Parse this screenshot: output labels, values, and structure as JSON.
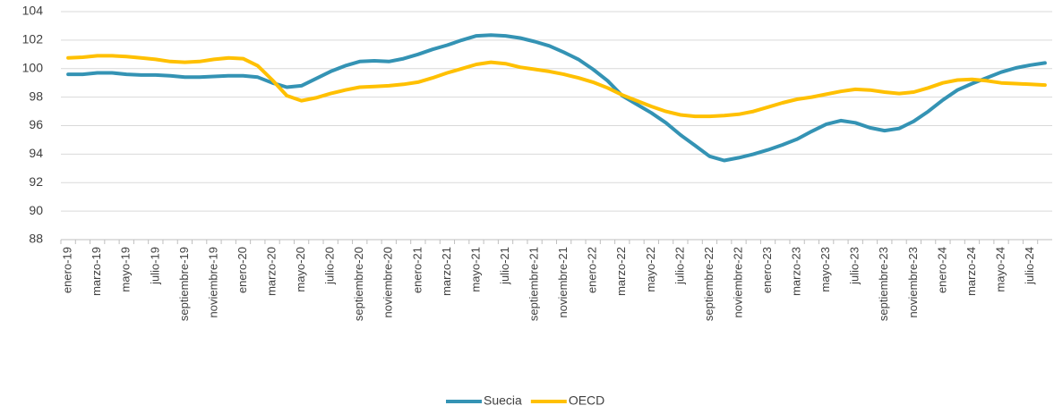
{
  "chart_data": {
    "type": "line",
    "categories": [
      "enero-19",
      null,
      "marzo-19",
      null,
      "mayo-19",
      null,
      "julio-19",
      null,
      "septiembre-19",
      null,
      "noviembre-19",
      null,
      "enero-20",
      null,
      "marzo-20",
      null,
      "mayo-20",
      null,
      "julio-20",
      null,
      "septiembre-20",
      null,
      "noviembre-20",
      null,
      "enero-21",
      null,
      "marzo-21",
      null,
      "mayo-21",
      null,
      "julio-21",
      null,
      "septiembre-21",
      null,
      "noviembre-21",
      null,
      "enero-22",
      null,
      "marzo-22",
      null,
      "mayo-22",
      null,
      "julio-22",
      null,
      "septiembre-22",
      null,
      "noviembre-22",
      null,
      "enero-23",
      null,
      "marzo-23",
      null,
      "mayo-23",
      null,
      "julio-23",
      null,
      "septiembre-23",
      null,
      "noviembre-23",
      null,
      "enero-24",
      null,
      "marzo-24",
      null,
      "mayo-24",
      null,
      "julio-24",
      null
    ],
    "series": [
      {
        "name": "Suecia",
        "color": "#3493b4",
        "values": [
          99.6,
          99.6,
          99.7,
          99.7,
          99.6,
          99.55,
          99.55,
          99.5,
          99.4,
          99.4,
          99.45,
          99.5,
          99.5,
          99.4,
          99.0,
          98.7,
          98.8,
          99.3,
          99.8,
          100.2,
          100.5,
          100.55,
          100.5,
          100.7,
          101.0,
          101.35,
          101.65,
          102.0,
          102.3,
          102.35,
          102.3,
          102.15,
          101.9,
          101.6,
          101.15,
          100.65,
          99.95,
          99.15,
          98.1,
          97.5,
          96.9,
          96.2,
          95.35,
          94.6,
          93.85,
          93.55,
          93.75,
          94.0,
          94.3,
          94.65,
          95.05,
          95.6,
          96.1,
          96.35,
          96.2,
          95.85,
          95.65,
          95.8,
          96.3,
          97.0,
          97.8,
          98.5,
          98.95,
          99.35,
          99.75,
          100.05,
          100.25,
          100.4
        ]
      },
      {
        "name": "OECD",
        "color": "#ffc000",
        "values": [
          100.75,
          100.8,
          100.9,
          100.9,
          100.85,
          100.75,
          100.65,
          100.5,
          100.45,
          100.5,
          100.65,
          100.75,
          100.7,
          100.2,
          99.2,
          98.1,
          97.75,
          97.95,
          98.25,
          98.5,
          98.7,
          98.75,
          98.8,
          98.9,
          99.05,
          99.35,
          99.7,
          100.0,
          100.3,
          100.45,
          100.35,
          100.1,
          99.95,
          99.8,
          99.6,
          99.35,
          99.05,
          98.65,
          98.15,
          97.75,
          97.35,
          97.0,
          96.75,
          96.65,
          96.65,
          96.7,
          96.8,
          97.0,
          97.3,
          97.6,
          97.85,
          98.0,
          98.2,
          98.4,
          98.55,
          98.5,
          98.35,
          98.25,
          98.35,
          98.65,
          99.0,
          99.2,
          99.25,
          99.15,
          99.0,
          98.95,
          98.9,
          98.85
        ]
      }
    ],
    "ylim": [
      88,
      104
    ],
    "yticks": [
      88,
      90,
      92,
      94,
      96,
      98,
      100,
      102,
      104
    ],
    "grid": true,
    "legend": "bottom"
  }
}
